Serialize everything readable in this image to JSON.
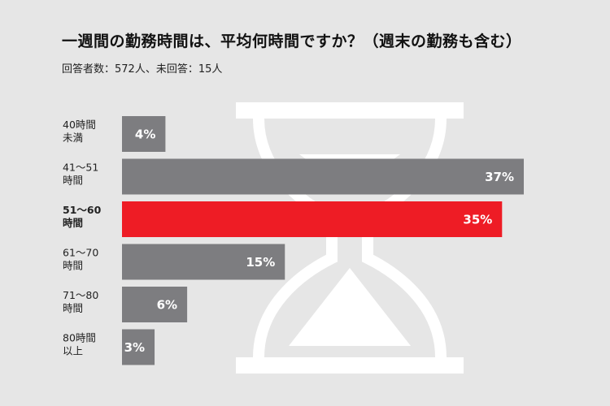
{
  "title": "一週間の勤務時間は、平均何時間ですか？（週末の勤務も含む）",
  "subtitle": "回答者数：572人、未回答：15人",
  "colors": {
    "background": "#e6e6e6",
    "bar": "#7d7d80",
    "highlight": "#ee1c25",
    "hourglass": "#ffffff"
  },
  "icons": [
    "hourglass-icon"
  ],
  "chart_data": {
    "type": "bar",
    "orientation": "horizontal",
    "title": "一週間の勤務時間は、平均何時間ですか？（週末の勤務も含む）",
    "subtitle": "回答者数：572人、未回答：15人",
    "categories": [
      [
        "40時間",
        "未満"
      ],
      [
        "41～51",
        "時間"
      ],
      [
        "51～60",
        "時間"
      ],
      [
        "61～70",
        "時間"
      ],
      [
        "71～80",
        "時間"
      ],
      [
        "80時間",
        "以上"
      ]
    ],
    "values": [
      4,
      37,
      35,
      15,
      6,
      3
    ],
    "value_labels": [
      "4%",
      "37%",
      "35%",
      "15%",
      "6%",
      "3%"
    ],
    "unit": "%",
    "highlight_index": 2,
    "xlim": [
      0,
      37
    ],
    "grid": false,
    "legend": "none"
  }
}
